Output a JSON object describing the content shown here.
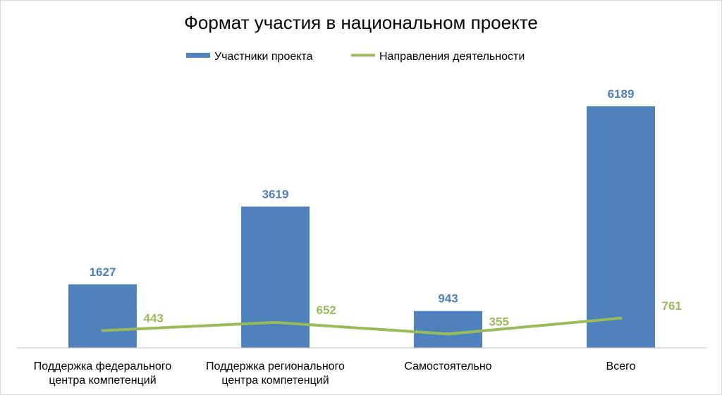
{
  "chart_data": {
    "type": "bar",
    "title": "Формат участия в национальном проекте",
    "categories": [
      [
        "Поддержка федерального",
        "центра компетенций"
      ],
      [
        "Поддержка регионального",
        "центра компетенций"
      ],
      [
        "Самостоятельно"
      ],
      [
        "Всего"
      ]
    ],
    "series": [
      {
        "name": "Участники проекта",
        "kind": "bar",
        "color": "#4f81bd",
        "values": [
          1627,
          3619,
          943,
          6189
        ]
      },
      {
        "name": "Направления деятельности",
        "kind": "line",
        "color": "#9bbb59",
        "values": [
          443,
          652,
          355,
          761
        ]
      }
    ],
    "ylim": [
      0,
      7000
    ],
    "grid": false,
    "legend": "top"
  }
}
